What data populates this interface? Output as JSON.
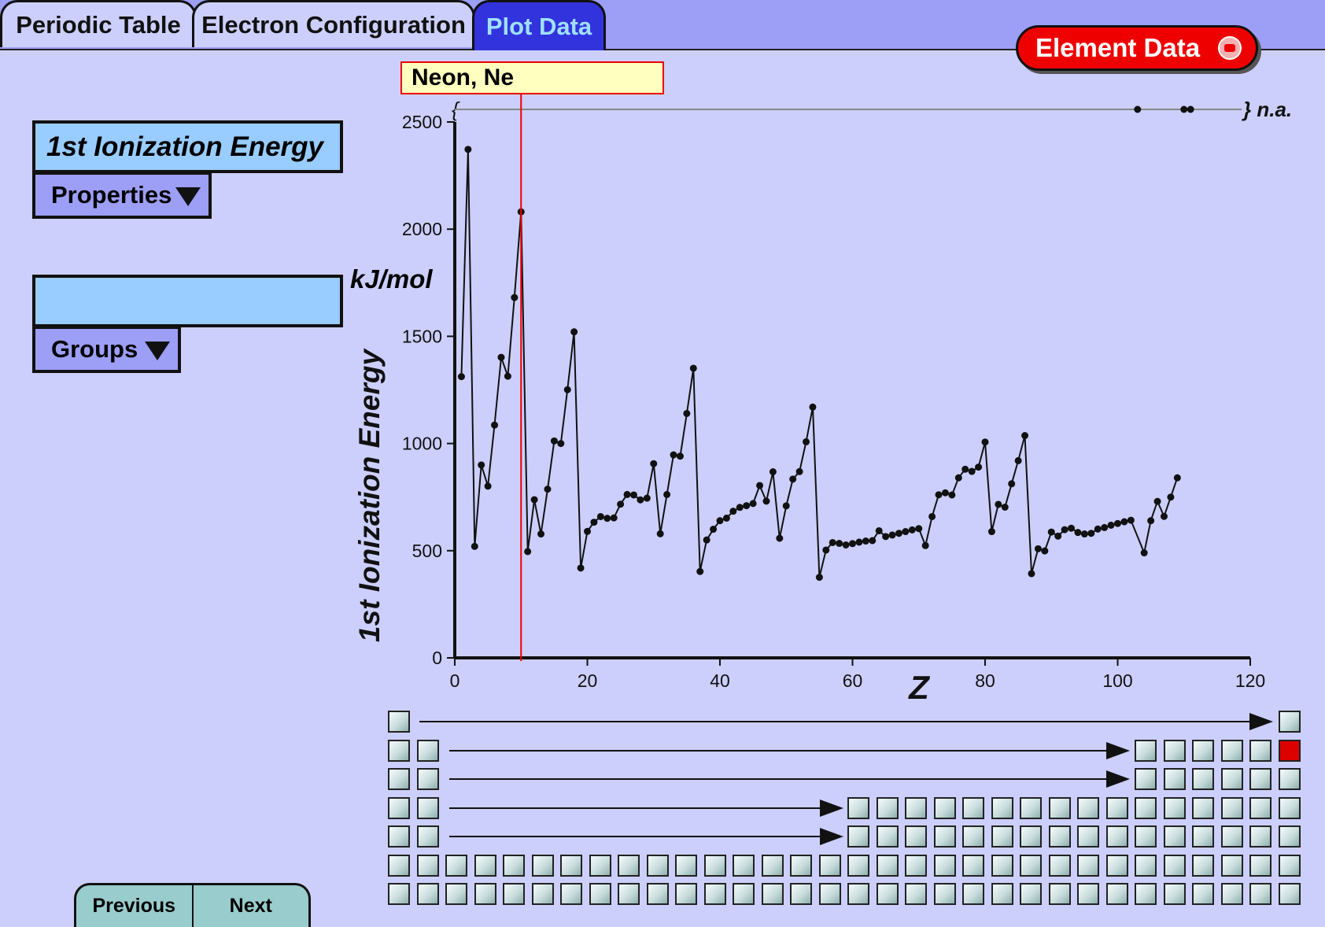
{
  "tabs": [
    {
      "label": "Periodic Table",
      "active": false
    },
    {
      "label": "Electron Configuration",
      "active": false
    },
    {
      "label": "Plot Data",
      "active": true
    }
  ],
  "element_data_button": "Element Data",
  "sidebar": {
    "property_label": "1st Ionization Energy",
    "properties_dropdown": "Properties",
    "group_label": "",
    "groups_dropdown": "Groups",
    "unit": "kJ/mol"
  },
  "selected_element": {
    "label": "Neon, Ne",
    "z": 10
  },
  "navigation": {
    "previous": "Previous",
    "next": "Next"
  },
  "colors": {
    "selection": "#ee0000",
    "active_tab_text": "#9fe0ff",
    "panel": "#cccffb"
  },
  "chart_data": {
    "type": "line",
    "title": "",
    "xlabel": "Z",
    "ylabel": "1st Ionization Energy",
    "xlim": [
      0,
      120
    ],
    "ylim": [
      0,
      2500
    ],
    "x_ticks": [
      "0",
      "20",
      "40",
      "60",
      "80",
      "100",
      "120"
    ],
    "y_ticks": [
      "0",
      "500",
      "1000",
      "1500",
      "2000",
      "2500"
    ],
    "na_label": "} n.a.",
    "na_open": "{",
    "na_points": [
      103,
      110,
      111
    ],
    "series": [
      {
        "name": "",
        "x": [
          1,
          2,
          3,
          4,
          5,
          6,
          7,
          8,
          9,
          10,
          11,
          12,
          13,
          14,
          15,
          16,
          17,
          18,
          19,
          20,
          21,
          22,
          23,
          24,
          25,
          26,
          27,
          28,
          29,
          30,
          31,
          32,
          33,
          34,
          35,
          36,
          37,
          38,
          39,
          40,
          41,
          42,
          43,
          44,
          45,
          46,
          47,
          48,
          49,
          50,
          51,
          52,
          53,
          54,
          55,
          56,
          57,
          58,
          59,
          60,
          61,
          62,
          63,
          64,
          65,
          66,
          67,
          68,
          69,
          70,
          71,
          72,
          73,
          74,
          75,
          76,
          77,
          78,
          79,
          80,
          81,
          82,
          83,
          84,
          85,
          86,
          87,
          88,
          89,
          90,
          91,
          92,
          93,
          94,
          95,
          96,
          97,
          98,
          99,
          100,
          101,
          102,
          104,
          105,
          106,
          107,
          108,
          109
        ],
        "y": [
          1312,
          2372,
          520,
          900,
          801,
          1086,
          1402,
          1314,
          1681,
          2081,
          496,
          738,
          578,
          787,
          1012,
          1000,
          1251,
          1521,
          419,
          590,
          633,
          659,
          651,
          653,
          717,
          762,
          760,
          737,
          745,
          906,
          579,
          762,
          947,
          941,
          1140,
          1351,
          403,
          550,
          600,
          640,
          652,
          684,
          702,
          710,
          720,
          804,
          731,
          868,
          558,
          709,
          834,
          869,
          1008,
          1170,
          376,
          503,
          538,
          534,
          527,
          533,
          540,
          545,
          547,
          593,
          566,
          573,
          581,
          589,
          597,
          603,
          524,
          659,
          761,
          770,
          760,
          840,
          880,
          870,
          890,
          1007,
          589,
          716,
          703,
          812,
          920,
          1037,
          393,
          509,
          499,
          587,
          568,
          598,
          605,
          585,
          578,
          581,
          601,
          608,
          619,
          627,
          635,
          642,
          490,
          640,
          730,
          660,
          750,
          840
        ]
      }
    ]
  }
}
